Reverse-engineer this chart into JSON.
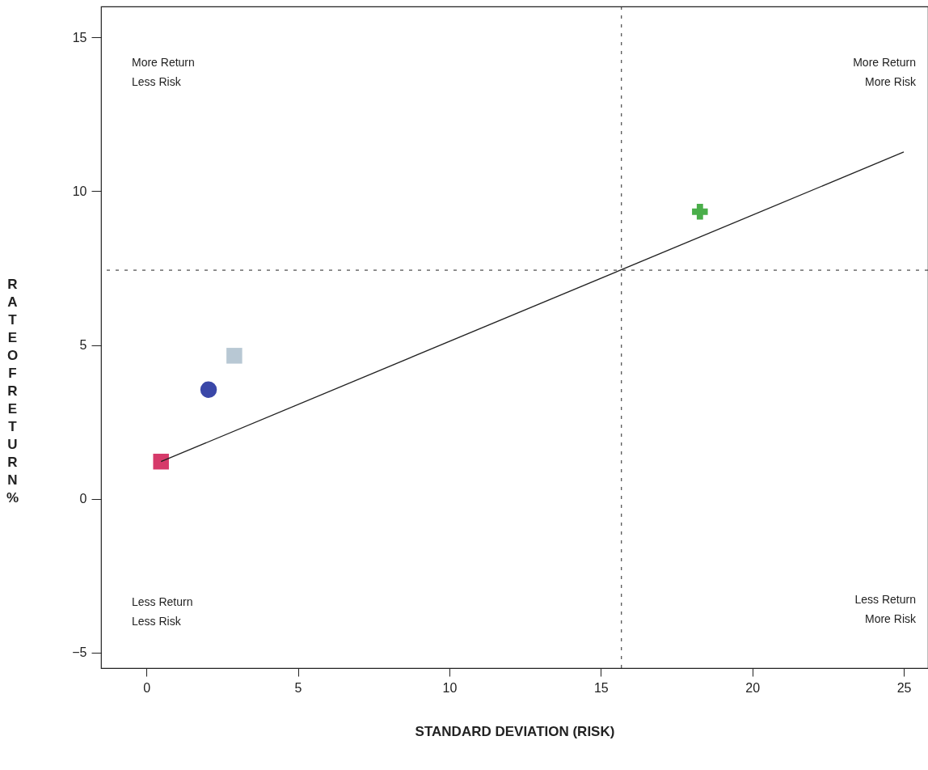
{
  "chart_data": {
    "type": "scatter",
    "xlabel": "STANDARD DEVIATION (RISK)",
    "ylabel": "RATE OF RETURN %",
    "xlim": [
      -1.5,
      25.8
    ],
    "xticks": [
      0,
      5,
      10,
      15,
      20,
      25
    ],
    "ylim": [
      -5.5,
      16
    ],
    "yticks": [
      -5,
      0,
      5,
      10,
      15
    ],
    "grid": false,
    "series": [
      {
        "type": "line",
        "color": "#222222",
        "x": [
          0.48,
          25
        ],
        "values": [
          1.21,
          11.27
        ],
        "marker": "none"
      },
      {
        "color": "#d63a6a",
        "x": [
          0.48
        ],
        "values": [
          1.21
        ],
        "marker": "square"
      },
      {
        "color": "#3a47a8",
        "x": [
          2.05
        ],
        "values": [
          3.55
        ],
        "marker": "circle"
      },
      {
        "color": "#b8c8d4",
        "x": [
          2.9
        ],
        "values": [
          4.65
        ],
        "marker": "square"
      },
      {
        "color": "#4aae4a",
        "x": [
          18.27
        ],
        "values": [
          9.33
        ],
        "marker": "cross"
      }
    ],
    "ref_lines": [
      {
        "axis": "x",
        "value": 15.68,
        "line_style": "dashed",
        "color": "#222222"
      },
      {
        "axis": "y",
        "value": 7.43,
        "line_style": "dashed",
        "color": "#222222"
      }
    ],
    "annotations": [
      "More Return\nLess Risk",
      "More Return\nMore Risk",
      "Less Return\nLess Risk",
      "Less Return\nMore Risk"
    ]
  }
}
